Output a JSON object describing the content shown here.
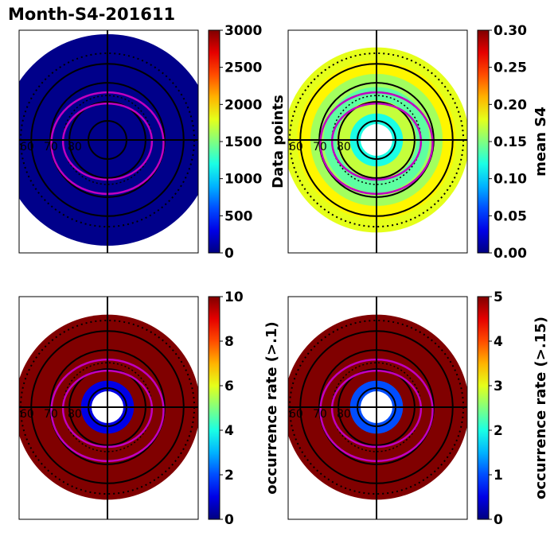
{
  "figure_title": "Month-S4-201611",
  "colors": {
    "cmap": "jet",
    "magenta_contour": "#c000c0",
    "grid_lines": "#000000",
    "dark_fill": "#00008b",
    "saturated_fill": "#800000"
  },
  "chart_data": [
    {
      "type": "heatmap",
      "projection": "polar",
      "panel": "top-left",
      "title": "",
      "colorbar_label": "Data points",
      "colorbar_ticks": [
        "0",
        "500",
        "1000",
        "1500",
        "2000",
        "2500",
        "3000"
      ],
      "vmin": 0,
      "vmax": 3000,
      "latitude_labels": [
        "60",
        "70",
        "80"
      ],
      "rings": [
        {
          "lat_from": 50,
          "lat_to": 90,
          "value": 30
        }
      ]
    },
    {
      "type": "heatmap",
      "projection": "polar",
      "panel": "top-right",
      "title": "",
      "colorbar_label": "mean S4",
      "colorbar_ticks": [
        "0.00",
        "0.05",
        "0.10",
        "0.15",
        "0.20",
        "0.25",
        "0.30"
      ],
      "vmin": 0,
      "vmax": 0.3,
      "latitude_labels": [
        "60",
        "70",
        "80"
      ],
      "rings": [
        {
          "lat_from": 55,
          "lat_to": 60,
          "value": 0.18
        },
        {
          "lat_from": 60,
          "lat_to": 65,
          "value": 0.19
        },
        {
          "lat_from": 65,
          "lat_to": 70,
          "value": 0.16
        },
        {
          "lat_from": 70,
          "lat_to": 75,
          "value": 0.14
        },
        {
          "lat_from": 75,
          "lat_to": 80,
          "value": 0.17
        },
        {
          "lat_from": 80,
          "lat_to": 84,
          "value": 0.12
        }
      ]
    },
    {
      "type": "heatmap",
      "projection": "polar",
      "panel": "bottom-left",
      "title": "",
      "colorbar_label": "occurrence rate (>.1)",
      "colorbar_ticks": [
        "0",
        "2",
        "4",
        "6",
        "8",
        "10"
      ],
      "vmin": 0,
      "vmax": 10,
      "latitude_labels": [
        "60",
        "70",
        "80"
      ],
      "rings": [
        {
          "lat_from": 55,
          "lat_to": 80,
          "value": 10
        },
        {
          "lat_from": 80,
          "lat_to": 84,
          "value": 1
        }
      ]
    },
    {
      "type": "heatmap",
      "projection": "polar",
      "panel": "bottom-right",
      "title": "",
      "colorbar_label": "occurrence rate (>.15)",
      "colorbar_ticks": [
        "0",
        "1",
        "2",
        "3",
        "4",
        "5"
      ],
      "vmin": 0,
      "vmax": 5,
      "latitude_labels": [
        "60",
        "70",
        "80"
      ],
      "rings": [
        {
          "lat_from": 55,
          "lat_to": 80,
          "value": 5
        },
        {
          "lat_from": 80,
          "lat_to": 84,
          "value": 1
        }
      ]
    }
  ]
}
